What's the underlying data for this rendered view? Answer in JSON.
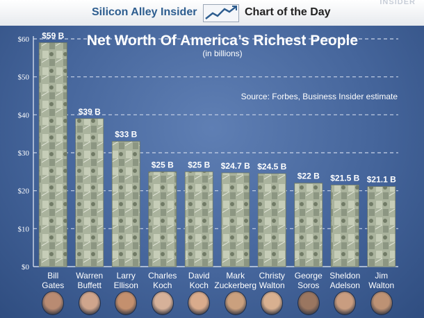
{
  "header": {
    "brand": "Silicon Alley Insider",
    "section": "Chart of the Day",
    "watermark": "INSIDER",
    "trend_icon": "trend-chart-icon"
  },
  "colors": {
    "background": "#3d5d93",
    "banner_brand": "#2d5d8f",
    "bar_fill": "#a9b39c",
    "text": "#ffffff"
  },
  "chart_data": {
    "type": "bar",
    "title": "Net Worth Of America’s Richest People",
    "subtitle": "(in billions)",
    "source": "Source: Forbes, Business Insider estimate",
    "xlabel": "",
    "ylabel": "",
    "ylim": [
      0,
      60
    ],
    "yticks": [
      {
        "value": 0,
        "label": "$0"
      },
      {
        "value": 10,
        "label": "$10"
      },
      {
        "value": 20,
        "label": "$20"
      },
      {
        "value": 30,
        "label": "$30"
      },
      {
        "value": 40,
        "label": "$40"
      },
      {
        "value": 50,
        "label": "$50"
      },
      {
        "value": 60,
        "label": "$60"
      }
    ],
    "grid": true,
    "categories": [
      [
        "Bill",
        "Gates"
      ],
      [
        "Warren",
        "Buffett"
      ],
      [
        "Larry",
        "Ellison"
      ],
      [
        "Charles",
        "Koch"
      ],
      [
        "David",
        "Koch"
      ],
      [
        "Mark",
        "Zuckerberg"
      ],
      [
        "Christy",
        "Walton"
      ],
      [
        "George",
        "Soros"
      ],
      [
        "Sheldon",
        "Adelson"
      ],
      [
        "Jim",
        "Walton"
      ]
    ],
    "values": [
      59,
      39,
      33,
      25,
      25,
      24.7,
      24.5,
      22,
      21.5,
      21.1
    ],
    "data_labels": [
      "$59 B",
      "$39 B",
      "$33 B",
      "$25 B",
      "$25 B",
      "$24.7 B",
      "$24.5 B",
      "$22 B",
      "$21.5 B",
      "$21.1 B"
    ]
  }
}
